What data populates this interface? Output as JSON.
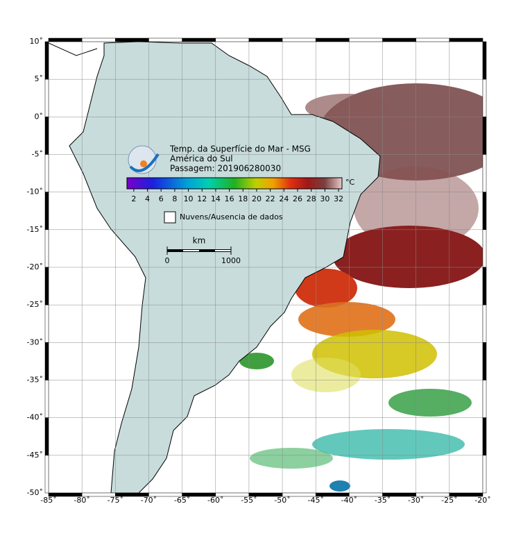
{
  "map": {
    "title_lines": [
      "Temp. da Superfície do Mar - MSG",
      "América do Sul",
      "Passagem: 201906280030"
    ],
    "xlim": [
      -85,
      -20
    ],
    "ylim": [
      -50,
      10
    ],
    "xticks": [
      {
        "value": -85,
        "label": "-85˚"
      },
      {
        "value": -80,
        "label": "-80˚"
      },
      {
        "value": -75,
        "label": "-75˚"
      },
      {
        "value": -70,
        "label": "-70˚"
      },
      {
        "value": -65,
        "label": "-65˚"
      },
      {
        "value": -60,
        "label": "-60˚"
      },
      {
        "value": -55,
        "label": "-55˚"
      },
      {
        "value": -50,
        "label": "-50˚"
      },
      {
        "value": -45,
        "label": "-45˚"
      },
      {
        "value": -40,
        "label": "-40˚"
      },
      {
        "value": -35,
        "label": "-35˚"
      },
      {
        "value": -30,
        "label": "-30˚"
      },
      {
        "value": -25,
        "label": "-25˚"
      },
      {
        "value": -20,
        "label": "-20˚"
      }
    ],
    "yticks": [
      {
        "value": 10,
        "label": "10˚"
      },
      {
        "value": 5,
        "label": "5˚"
      },
      {
        "value": 0,
        "label": "0˚"
      },
      {
        "value": -5,
        "label": "-5˚"
      },
      {
        "value": -10,
        "label": "-10˚"
      },
      {
        "value": -15,
        "label": "-15˚"
      },
      {
        "value": -20,
        "label": "-20˚"
      },
      {
        "value": -25,
        "label": "-25˚"
      },
      {
        "value": -30,
        "label": "-30˚"
      },
      {
        "value": -35,
        "label": "-35˚"
      },
      {
        "value": -40,
        "label": "-40˚"
      },
      {
        "value": -45,
        "label": "-45˚"
      },
      {
        "value": -50,
        "label": "-50˚"
      }
    ],
    "colorbar": {
      "unit": "°C",
      "clim": [
        1,
        32.5
      ],
      "ticks": [
        2,
        4,
        6,
        8,
        10,
        12,
        14,
        16,
        18,
        20,
        22,
        24,
        26,
        28,
        30,
        32
      ]
    },
    "legend_label": "Nuvens/Ausencia de dados",
    "scalebar": {
      "unit": "km",
      "ticks": [
        0,
        1000
      ]
    }
  }
}
